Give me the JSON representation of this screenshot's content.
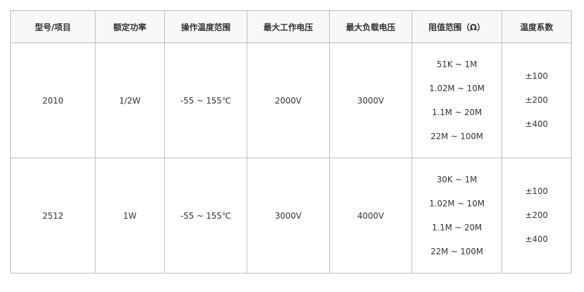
{
  "headers": [
    "型号/项目",
    "额定功率",
    "操作温度范围",
    "最大工作电压",
    "最大负载电压",
    "阻值范围（Ω）",
    "温度系数"
  ],
  "rows": [
    {
      "model": "2010",
      "power": "1/2W",
      "temp_range": "-55 ~ 155℃",
      "max_work_voltage": "2000V",
      "max_load_voltage": "3000V",
      "resistance": [
        "51K ~ 1M",
        "1.02M ~ 10M",
        "1.1M ~ 20M",
        "22M ~ 100M"
      ],
      "tcr": [
        "±100",
        "±200",
        "±400"
      ]
    },
    {
      "model": "2512",
      "power": "1W",
      "temp_range": "-55 ~ 155℃",
      "max_work_voltage": "3000V",
      "max_load_voltage": "4000V",
      "resistance": [
        "30K ~ 1M",
        "1.02M ~ 10M",
        "1.1M ~ 20M",
        "22M ~ 100M"
      ],
      "tcr": [
        "±100",
        "±200",
        "±400"
      ]
    }
  ]
}
